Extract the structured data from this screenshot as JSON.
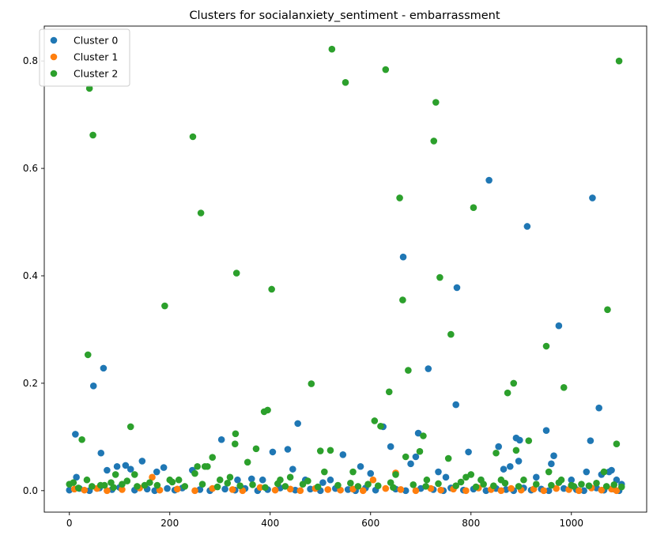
{
  "chart_data": {
    "type": "scatter",
    "title": "Clusters for socialanxiety_sentiment - embarrassment",
    "xlabel": "",
    "ylabel": "",
    "xlim": [
      -50,
      1150
    ],
    "ylim": [
      -0.04,
      0.865
    ],
    "x_ticks": [
      0,
      200,
      400,
      600,
      800,
      1000
    ],
    "y_ticks": [
      0.0,
      0.2,
      0.4,
      0.6,
      0.8
    ],
    "y_tick_labels": [
      "0.0",
      "0.2",
      "0.4",
      "0.6",
      "0.8"
    ],
    "legend_position": "top-left",
    "grid": false,
    "series": [
      {
        "name": "Cluster 0",
        "color": "#1f77b4",
        "points": [
          [
            12,
            0.105
          ],
          [
            14,
            0.025
          ],
          [
            48,
            0.195
          ],
          [
            63,
            0.07
          ],
          [
            68,
            0.228
          ],
          [
            75,
            0.038
          ],
          [
            95,
            0.045
          ],
          [
            112,
            0.047
          ],
          [
            122,
            0.04
          ],
          [
            145,
            0.055
          ],
          [
            174,
            0.035
          ],
          [
            188,
            0.043
          ],
          [
            245,
            0.038
          ],
          [
            303,
            0.095
          ],
          [
            335,
            0.02
          ],
          [
            363,
            0.022
          ],
          [
            385,
            0.02
          ],
          [
            405,
            0.072
          ],
          [
            435,
            0.077
          ],
          [
            445,
            0.04
          ],
          [
            455,
            0.125
          ],
          [
            470,
            0.02
          ],
          [
            505,
            0.015
          ],
          [
            520,
            0.02
          ],
          [
            545,
            0.067
          ],
          [
            580,
            0.045
          ],
          [
            600,
            0.032
          ],
          [
            625,
            0.119
          ],
          [
            640,
            0.082
          ],
          [
            665,
            0.435
          ],
          [
            680,
            0.05
          ],
          [
            690,
            0.063
          ],
          [
            695,
            0.107
          ],
          [
            715,
            0.227
          ],
          [
            735,
            0.035
          ],
          [
            750,
            0.025
          ],
          [
            770,
            0.16
          ],
          [
            772,
            0.378
          ],
          [
            795,
            0.072
          ],
          [
            820,
            0.02
          ],
          [
            836,
            0.578
          ],
          [
            855,
            0.082
          ],
          [
            865,
            0.04
          ],
          [
            878,
            0.045
          ],
          [
            890,
            0.098
          ],
          [
            895,
            0.055
          ],
          [
            897,
            0.094
          ],
          [
            912,
            0.492
          ],
          [
            930,
            0.025
          ],
          [
            950,
            0.112
          ],
          [
            960,
            0.05
          ],
          [
            965,
            0.065
          ],
          [
            975,
            0.307
          ],
          [
            1000,
            0.02
          ],
          [
            1030,
            0.035
          ],
          [
            1038,
            0.093
          ],
          [
            1042,
            0.545
          ],
          [
            1055,
            0.154
          ],
          [
            1060,
            0.03
          ],
          [
            1075,
            0.035
          ],
          [
            1080,
            0.038
          ],
          [
            1090,
            0.02
          ],
          [
            1100,
            0.012
          ],
          [
            0,
            0.001
          ],
          [
            20,
            0.004
          ],
          [
            40,
            0.0
          ],
          [
            60,
            0.005
          ],
          [
            85,
            0.002
          ],
          [
            100,
            0.006
          ],
          [
            130,
            0.001
          ],
          [
            155,
            0.003
          ],
          [
            170,
            0.0
          ],
          [
            195,
            0.004
          ],
          [
            210,
            0.001
          ],
          [
            225,
            0.005
          ],
          [
            260,
            0.002
          ],
          [
            280,
            0.0
          ],
          [
            310,
            0.003
          ],
          [
            330,
            0.001
          ],
          [
            350,
            0.004
          ],
          [
            375,
            0.0
          ],
          [
            395,
            0.002
          ],
          [
            420,
            0.005
          ],
          [
            450,
            0.001
          ],
          [
            480,
            0.003
          ],
          [
            500,
            0.0
          ],
          [
            530,
            0.004
          ],
          [
            555,
            0.002
          ],
          [
            570,
            0.0
          ],
          [
            590,
            0.005
          ],
          [
            610,
            0.001
          ],
          [
            650,
            0.003
          ],
          [
            670,
            0.0
          ],
          [
            700,
            0.004
          ],
          [
            725,
            0.002
          ],
          [
            745,
            0.0
          ],
          [
            760,
            0.005
          ],
          [
            785,
            0.001
          ],
          [
            805,
            0.003
          ],
          [
            830,
            0.0
          ],
          [
            850,
            0.004
          ],
          [
            870,
            0.002
          ],
          [
            885,
            0.0
          ],
          [
            905,
            0.005
          ],
          [
            920,
            0.001
          ],
          [
            940,
            0.003
          ],
          [
            955,
            0.0
          ],
          [
            985,
            0.004
          ],
          [
            1010,
            0.002
          ],
          [
            1025,
            0.0
          ],
          [
            1050,
            0.005
          ],
          [
            1065,
            0.001
          ],
          [
            1085,
            0.003
          ],
          [
            1095,
            0.0
          ]
        ]
      },
      {
        "name": "Cluster 1",
        "color": "#ff7f0e",
        "points": [
          [
            10,
            0.003
          ],
          [
            30,
            0.001
          ],
          [
            55,
            0.004
          ],
          [
            75,
            0.0
          ],
          [
            105,
            0.002
          ],
          [
            140,
            0.005
          ],
          [
            165,
            0.025
          ],
          [
            180,
            0.001
          ],
          [
            215,
            0.003
          ],
          [
            250,
            0.0
          ],
          [
            285,
            0.004
          ],
          [
            325,
            0.002
          ],
          [
            345,
            0.0
          ],
          [
            380,
            0.006
          ],
          [
            410,
            0.001
          ],
          [
            440,
            0.003
          ],
          [
            460,
            0.0
          ],
          [
            490,
            0.004
          ],
          [
            515,
            0.002
          ],
          [
            540,
            0.001
          ],
          [
            565,
            0.003
          ],
          [
            585,
            0.0
          ],
          [
            605,
            0.02
          ],
          [
            630,
            0.004
          ],
          [
            650,
            0.033
          ],
          [
            660,
            0.002
          ],
          [
            690,
            0.0
          ],
          [
            720,
            0.004
          ],
          [
            740,
            0.001
          ],
          [
            765,
            0.003
          ],
          [
            790,
            0.0
          ],
          [
            815,
            0.005
          ],
          [
            840,
            0.002
          ],
          [
            860,
            0.0
          ],
          [
            880,
            0.004
          ],
          [
            900,
            0.001
          ],
          [
            925,
            0.003
          ],
          [
            945,
            0.0
          ],
          [
            970,
            0.004
          ],
          [
            995,
            0.002
          ],
          [
            1015,
            0.0
          ],
          [
            1040,
            0.005
          ],
          [
            1060,
            0.001
          ],
          [
            1080,
            0.003
          ],
          [
            1090,
            0.0
          ]
        ]
      },
      {
        "name": "Cluster 2",
        "color": "#2ca02c",
        "points": [
          [
            18,
            0.005
          ],
          [
            25,
            0.095
          ],
          [
            35,
            0.02
          ],
          [
            37,
            0.253
          ],
          [
            40,
            0.749
          ],
          [
            47,
            0.662
          ],
          [
            62,
            0.01
          ],
          [
            83,
            0.015
          ],
          [
            92,
            0.03
          ],
          [
            105,
            0.012
          ],
          [
            122,
            0.119
          ],
          [
            130,
            0.03
          ],
          [
            150,
            0.01
          ],
          [
            160,
            0.015
          ],
          [
            190,
            0.344
          ],
          [
            200,
            0.02
          ],
          [
            218,
            0.02
          ],
          [
            246,
            0.659
          ],
          [
            250,
            0.032
          ],
          [
            255,
            0.045
          ],
          [
            262,
            0.517
          ],
          [
            270,
            0.045
          ],
          [
            275,
            0.045
          ],
          [
            285,
            0.062
          ],
          [
            300,
            0.02
          ],
          [
            320,
            0.025
          ],
          [
            330,
            0.087
          ],
          [
            331,
            0.106
          ],
          [
            333,
            0.405
          ],
          [
            355,
            0.053
          ],
          [
            372,
            0.078
          ],
          [
            388,
            0.147
          ],
          [
            395,
            0.15
          ],
          [
            403,
            0.375
          ],
          [
            420,
            0.02
          ],
          [
            440,
            0.025
          ],
          [
            482,
            0.199
          ],
          [
            500,
            0.074
          ],
          [
            508,
            0.035
          ],
          [
            520,
            0.075
          ],
          [
            523,
            0.822
          ],
          [
            550,
            0.76
          ],
          [
            565,
            0.035
          ],
          [
            608,
            0.13
          ],
          [
            620,
            0.12
          ],
          [
            630,
            0.784
          ],
          [
            637,
            0.184
          ],
          [
            650,
            0.03
          ],
          [
            658,
            0.545
          ],
          [
            664,
            0.355
          ],
          [
            670,
            0.063
          ],
          [
            675,
            0.224
          ],
          [
            698,
            0.073
          ],
          [
            705,
            0.102
          ],
          [
            712,
            0.02
          ],
          [
            726,
            0.651
          ],
          [
            730,
            0.723
          ],
          [
            738,
            0.397
          ],
          [
            755,
            0.06
          ],
          [
            760,
            0.291
          ],
          [
            790,
            0.025
          ],
          [
            800,
            0.03
          ],
          [
            805,
            0.527
          ],
          [
            820,
            0.02
          ],
          [
            850,
            0.07
          ],
          [
            860,
            0.02
          ],
          [
            873,
            0.182
          ],
          [
            885,
            0.2
          ],
          [
            890,
            0.075
          ],
          [
            905,
            0.02
          ],
          [
            915,
            0.093
          ],
          [
            950,
            0.269
          ],
          [
            955,
            0.035
          ],
          [
            980,
            0.02
          ],
          [
            985,
            0.192
          ],
          [
            1000,
            0.01
          ],
          [
            1065,
            0.035
          ],
          [
            1072,
            0.337
          ],
          [
            1090,
            0.087
          ],
          [
            1095,
            0.8
          ],
          [
            0,
            0.012
          ],
          [
            8,
            0.015
          ],
          [
            45,
            0.008
          ],
          [
            70,
            0.01
          ],
          [
            88,
            0.006
          ],
          [
            115,
            0.018
          ],
          [
            135,
            0.008
          ],
          [
            175,
            0.01
          ],
          [
            205,
            0.016
          ],
          [
            230,
            0.008
          ],
          [
            265,
            0.012
          ],
          [
            295,
            0.007
          ],
          [
            315,
            0.014
          ],
          [
            340,
            0.009
          ],
          [
            365,
            0.011
          ],
          [
            390,
            0.006
          ],
          [
            415,
            0.013
          ],
          [
            430,
            0.008
          ],
          [
            465,
            0.012
          ],
          [
            475,
            0.018
          ],
          [
            495,
            0.007
          ],
          [
            535,
            0.01
          ],
          [
            560,
            0.014
          ],
          [
            575,
            0.008
          ],
          [
            595,
            0.012
          ],
          [
            615,
            0.009
          ],
          [
            640,
            0.015
          ],
          [
            645,
            0.006
          ],
          [
            685,
            0.011
          ],
          [
            710,
            0.008
          ],
          [
            735,
            0.013
          ],
          [
            770,
            0.009
          ],
          [
            780,
            0.016
          ],
          [
            810,
            0.007
          ],
          [
            825,
            0.012
          ],
          [
            845,
            0.009
          ],
          [
            868,
            0.014
          ],
          [
            895,
            0.008
          ],
          [
            930,
            0.012
          ],
          [
            960,
            0.01
          ],
          [
            975,
            0.015
          ],
          [
            1005,
            0.008
          ],
          [
            1020,
            0.012
          ],
          [
            1035,
            0.009
          ],
          [
            1050,
            0.014
          ],
          [
            1070,
            0.008
          ],
          [
            1085,
            0.011
          ],
          [
            1100,
            0.007
          ]
        ]
      }
    ]
  }
}
